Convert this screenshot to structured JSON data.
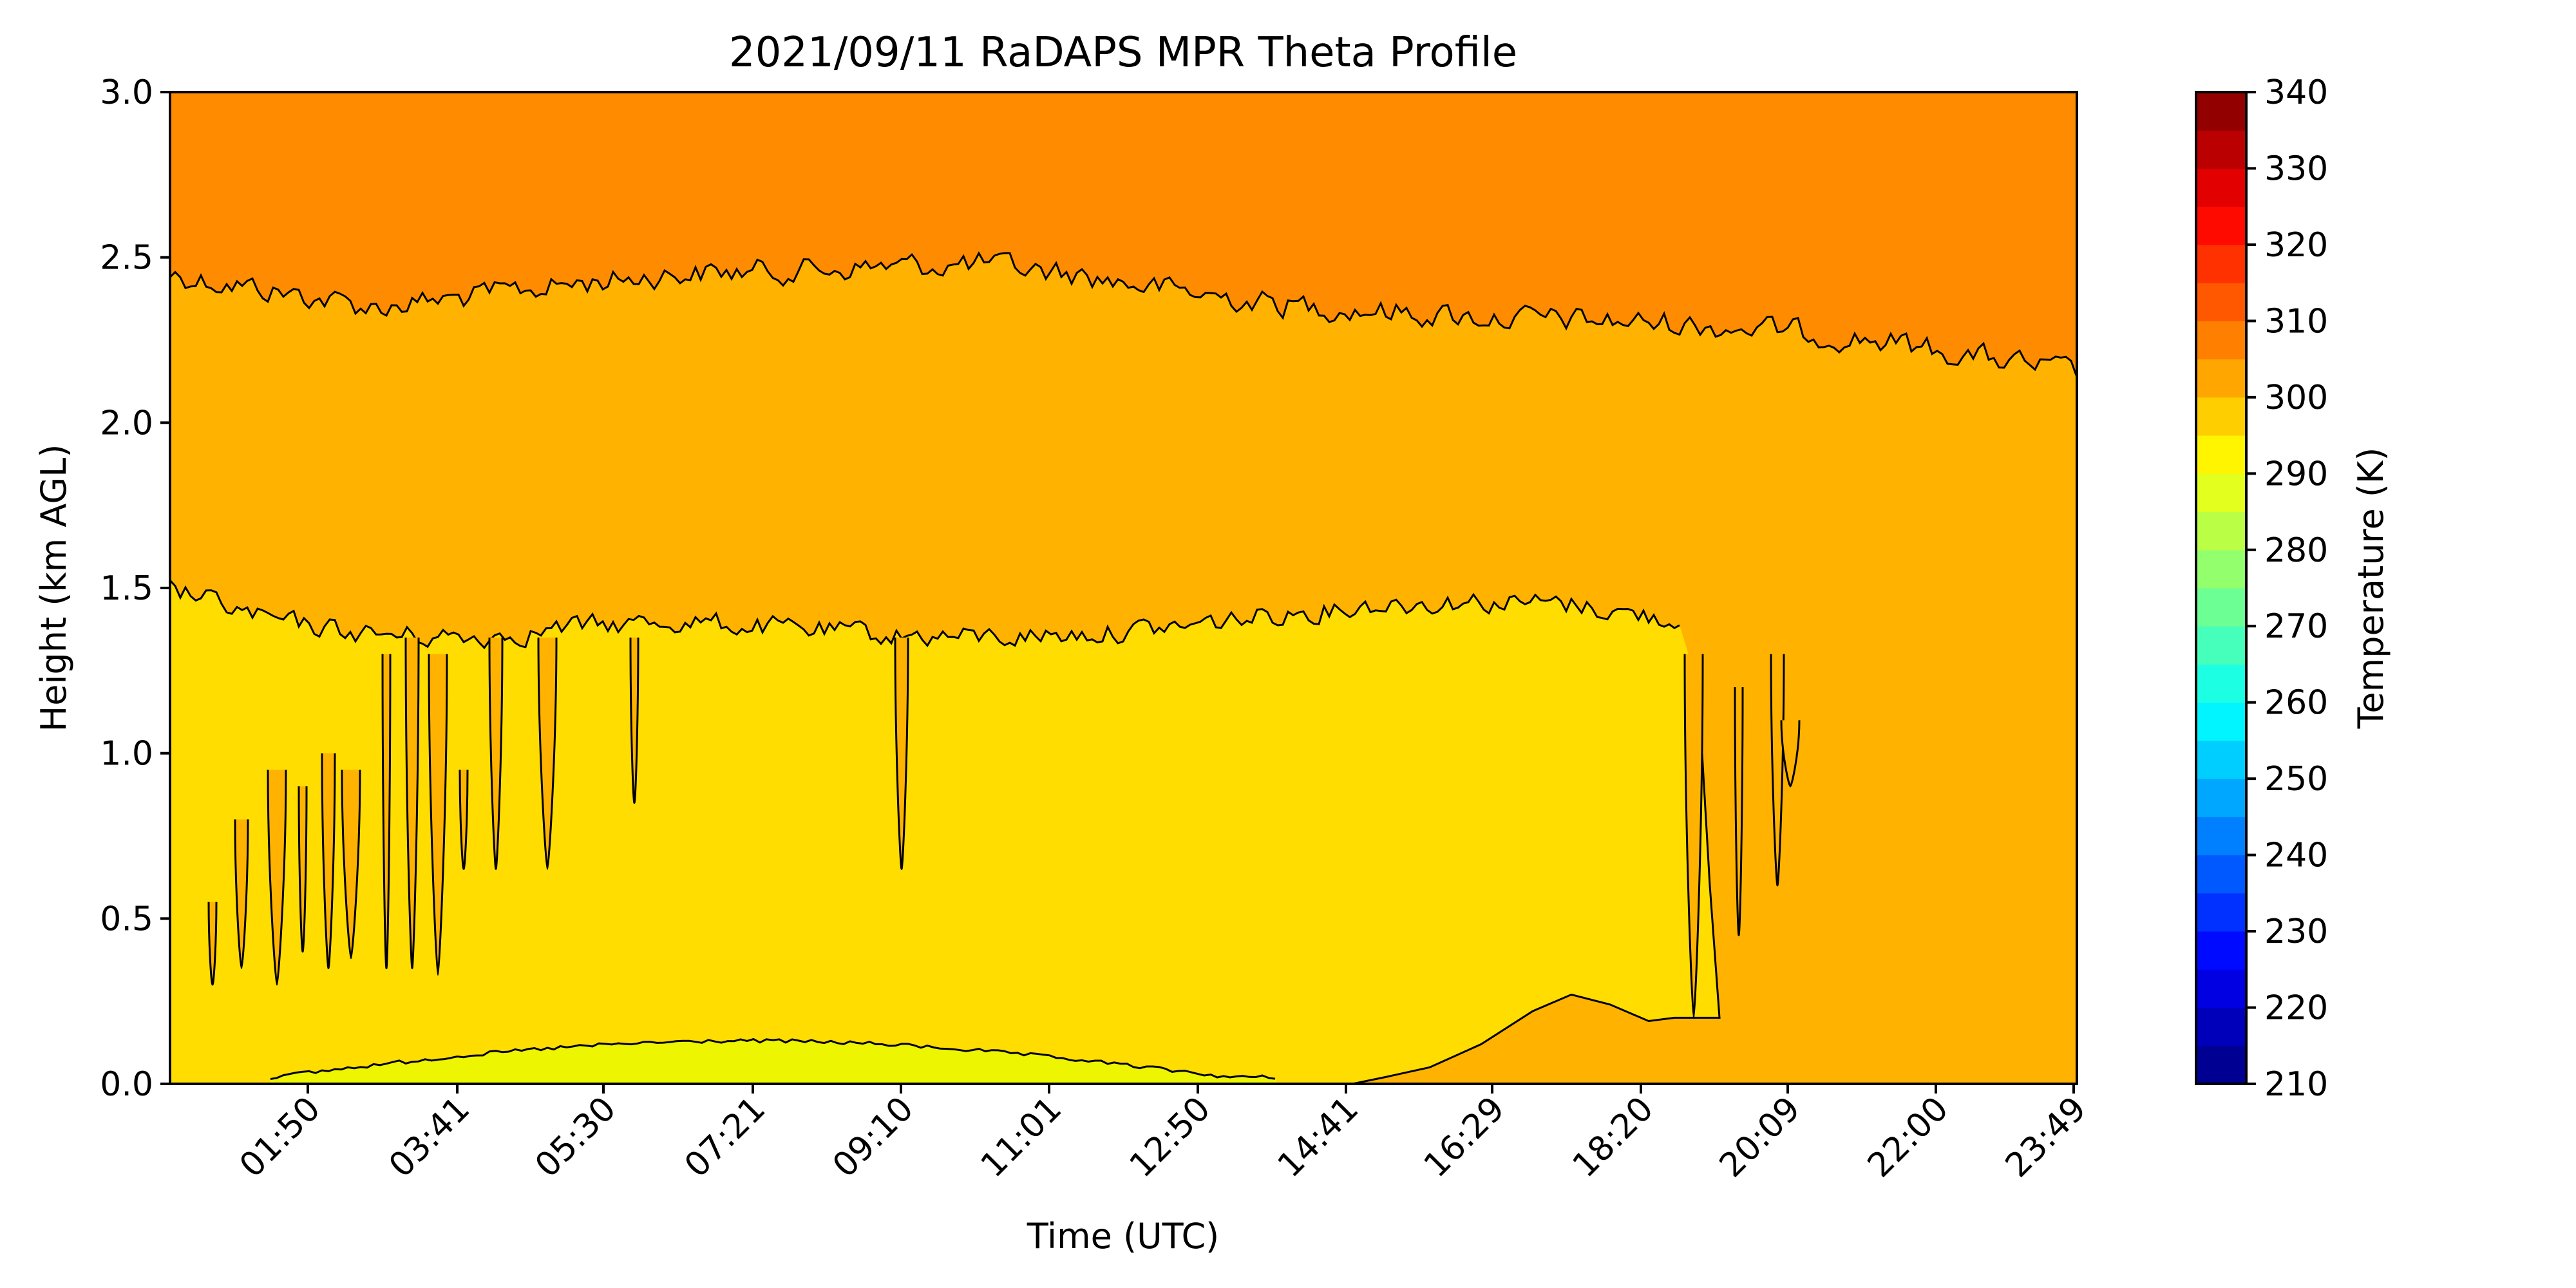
{
  "chart_data": {
    "type": "contour",
    "title": "2021/09/11 RaDAPS MPR Theta Profile",
    "xlabel": "Time (UTC)",
    "ylabel": "Height (km AGL)",
    "ylim": [
      0,
      3.0
    ],
    "yticks": [
      "0.0",
      "0.5",
      "1.0",
      "1.5",
      "2.0",
      "2.5",
      "3.0"
    ],
    "xticks": [
      "01:50",
      "03:41",
      "05:30",
      "07:21",
      "09:10",
      "11:01",
      "12:50",
      "14:41",
      "16:29",
      "18:20",
      "20:09",
      "22:00",
      "23:49"
    ],
    "colorbar": {
      "label": "Temperature (K)",
      "range": [
        210,
        340
      ],
      "step": 5,
      "tick_labels": [
        "210",
        "220",
        "230",
        "240",
        "250",
        "260",
        "270",
        "280",
        "290",
        "300",
        "310",
        "320",
        "330",
        "340"
      ]
    },
    "regions": [
      {
        "level_K": "305-310",
        "color": "#ff8c00",
        "description": "upper layer above ~2.3 km"
      },
      {
        "level_K": "300-305",
        "color": "#ffb300",
        "description": "middle layer between ~1.4 km and ~2.3 km, extends to surface after 14:41"
      },
      {
        "level_K": "295-300",
        "color": "#ffdd00",
        "description": "lower layer below ~1.4 km until ~20:00"
      },
      {
        "level_K": "290-295",
        "color": "#eef500",
        "description": "thin surface layer ~02:00-14:00 below ~0.1 km"
      }
    ],
    "contours": [
      {
        "level": 305,
        "heights_km": [
          2.45,
          2.4,
          2.35,
          2.38,
          2.42,
          2.45,
          2.46,
          2.47,
          2.48,
          2.45,
          2.4,
          2.36,
          2.34,
          2.32,
          2.31,
          2.3,
          2.28,
          2.25,
          2.2,
          2.15
        ]
      },
      {
        "level": 300,
        "heights_km": [
          1.5,
          1.4,
          1.36,
          1.35,
          1.38,
          1.4,
          1.38,
          1.36,
          1.35,
          1.36,
          1.38,
          1.42,
          1.45,
          1.46,
          1.45,
          1.4,
          1.38,
          1.36,
          1.33,
          1.3
        ]
      }
    ]
  }
}
